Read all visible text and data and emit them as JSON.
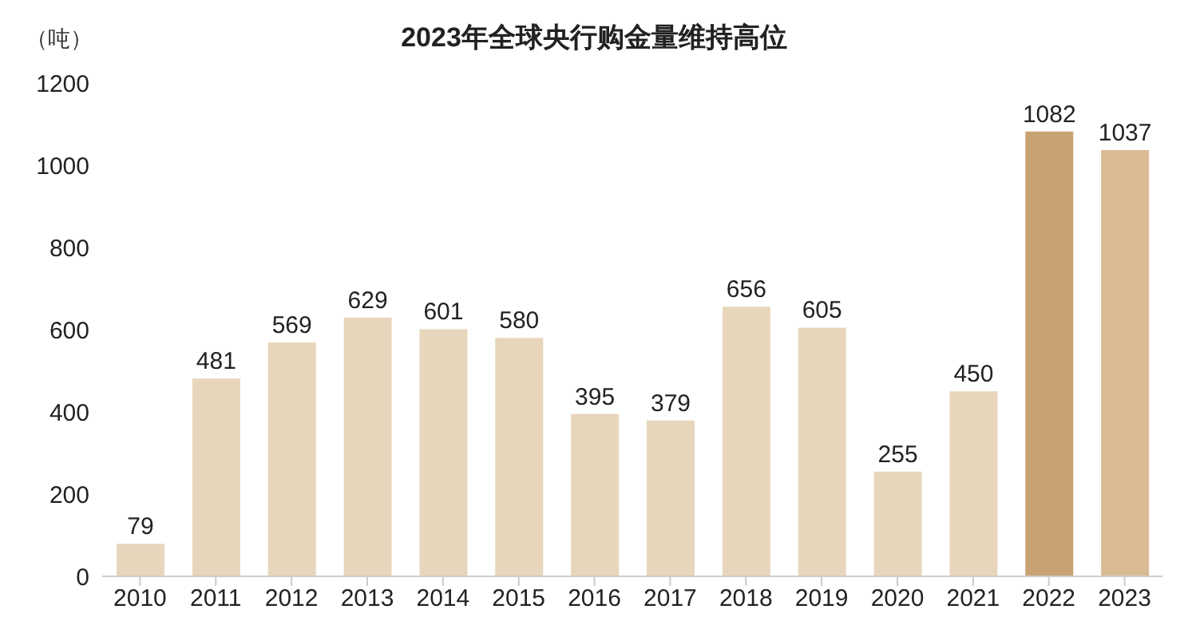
{
  "chart_data": {
    "type": "bar",
    "title": "2023年全球央行购金量维持高位",
    "ylabel": "（吨）",
    "categories": [
      "2010",
      "2011",
      "2012",
      "2013",
      "2014",
      "2015",
      "2016",
      "2017",
      "2018",
      "2019",
      "2020",
      "2021",
      "2022",
      "2023"
    ],
    "values": [
      79,
      481,
      569,
      629,
      601,
      580,
      395,
      379,
      656,
      605,
      255,
      450,
      1082,
      1037
    ],
    "colors": [
      "#e8d6bc",
      "#e8d6bc",
      "#e8d6bc",
      "#e8d6bc",
      "#e8d6bc",
      "#e8d6bc",
      "#e8d6bc",
      "#e8d6bc",
      "#e8d6bc",
      "#e8d6bc",
      "#e8d6bc",
      "#e8d6bc",
      "#c9a273",
      "#d9ba92"
    ],
    "ylim": [
      0,
      1200
    ],
    "yticks": [
      0,
      200,
      400,
      600,
      800,
      1000,
      1200
    ],
    "grid": false,
    "data_labels": true
  }
}
